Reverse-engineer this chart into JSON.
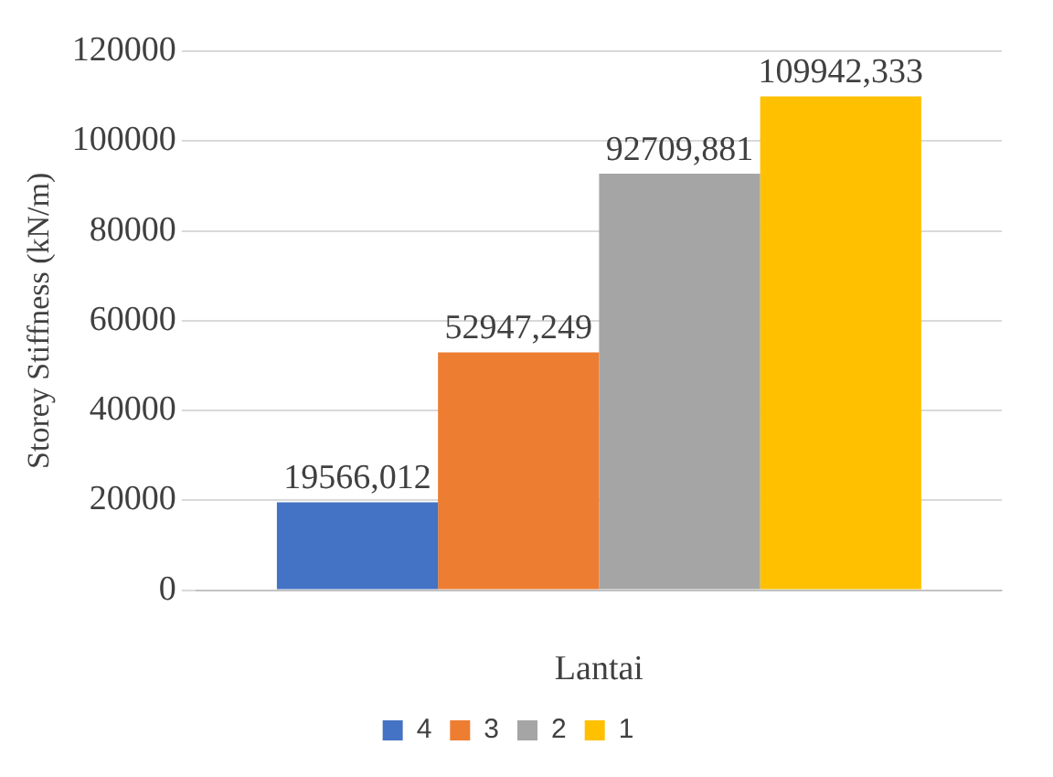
{
  "chart_data": {
    "type": "bar",
    "xlabel": "Lantai",
    "ylabel": "Storey Stiffness (kN/m)",
    "categories": [
      null
    ],
    "series": [
      {
        "name": "4",
        "color": "#4472c4",
        "values": [
          19566.012
        ],
        "value_labels": [
          "19566,012"
        ]
      },
      {
        "name": "3",
        "color": "#ed7d31",
        "values": [
          52947.249
        ],
        "value_labels": [
          "52947,249"
        ]
      },
      {
        "name": "2",
        "color": "#a5a5a5",
        "values": [
          92709.881
        ],
        "value_labels": [
          "92709,881"
        ]
      },
      {
        "name": "1",
        "color": "#ffc000",
        "values": [
          109942.333
        ],
        "value_labels": [
          "109942,333"
        ]
      }
    ],
    "ylim": [
      0,
      120000
    ],
    "yticks": [
      0,
      20000,
      40000,
      60000,
      80000,
      100000,
      120000
    ],
    "grid": "y",
    "legend": "bottom"
  }
}
